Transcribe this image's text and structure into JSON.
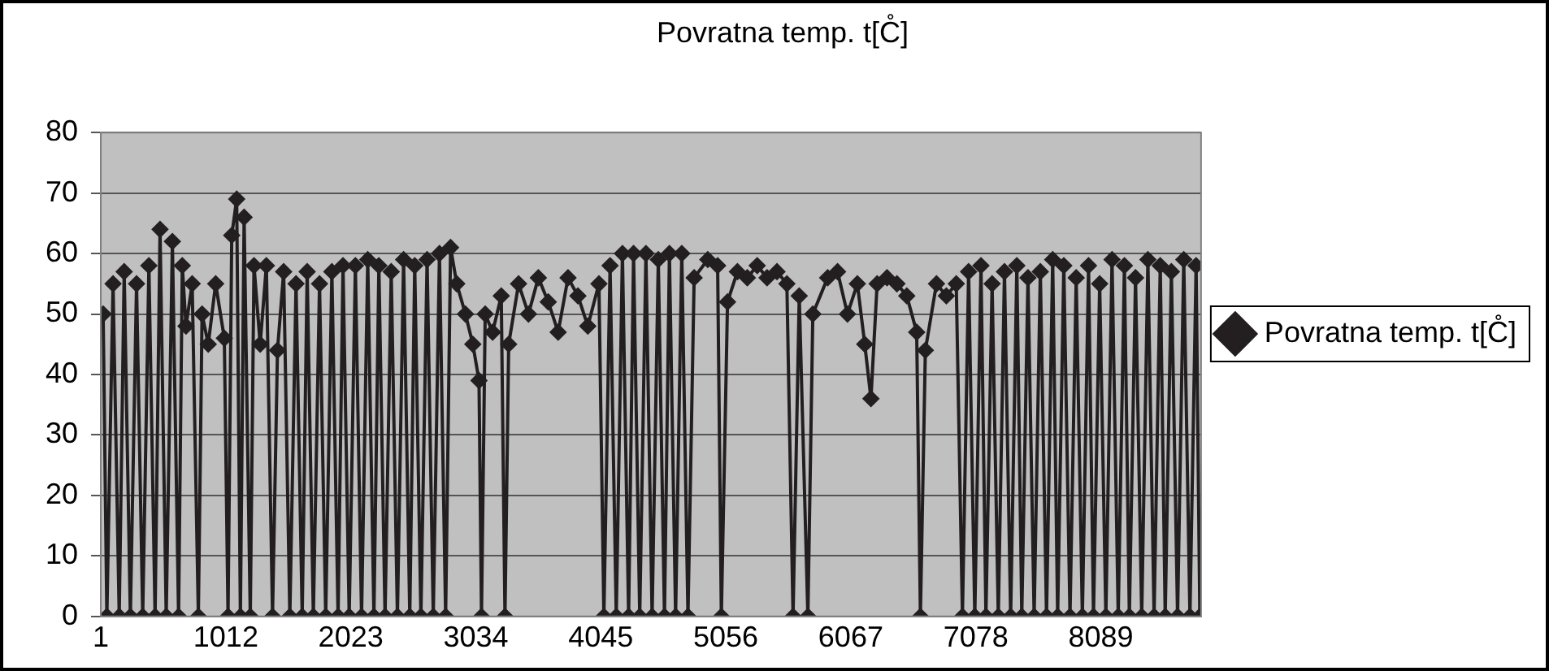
{
  "chart_data": {
    "type": "line",
    "title": "Povratna temp. t[C̊]",
    "series": [
      {
        "name": "Povratna temp. t[C̊]",
        "color": "#231f20",
        "x": [
          20,
          50,
          100,
          150,
          190,
          240,
          290,
          340,
          390,
          440,
          480,
          530,
          580,
          630,
          660,
          690,
          740,
          790,
          820,
          870,
          930,
          1000,
          1030,
          1060,
          1100,
          1130,
          1160,
          1210,
          1240,
          1290,
          1340,
          1390,
          1430,
          1480,
          1530,
          1580,
          1630,
          1670,
          1720,
          1770,
          1820,
          1870,
          1920,
          1960,
          2010,
          2060,
          2110,
          2160,
          2210,
          2250,
          2300,
          2350,
          2400,
          2450,
          2500,
          2540,
          2590,
          2640,
          2690,
          2740,
          2790,
          2830,
          2880,
          2950,
          3010,
          3060,
          3080,
          3110,
          3170,
          3240,
          3270,
          3300,
          3380,
          3460,
          3540,
          3620,
          3700,
          3780,
          3860,
          3940,
          4030,
          4070,
          4120,
          4170,
          4220,
          4270,
          4310,
          4360,
          4410,
          4460,
          4510,
          4560,
          4600,
          4650,
          4700,
          4750,
          4800,
          4910,
          4990,
          5020,
          5070,
          5150,
          5230,
          5310,
          5390,
          5470,
          5550,
          5600,
          5650,
          5720,
          5760,
          5880,
          5960,
          6040,
          6120,
          6180,
          6230,
          6280,
          6360,
          6440,
          6520,
          6600,
          6630,
          6670,
          6760,
          6840,
          6920,
          6970,
          7020,
          7070,
          7120,
          7160,
          7210,
          7260,
          7310,
          7360,
          7410,
          7450,
          7500,
          7550,
          7600,
          7650,
          7700,
          7740,
          7790,
          7840,
          7890,
          7940,
          7990,
          8030,
          8080,
          8130,
          8180,
          8230,
          8280,
          8320,
          8370,
          8420,
          8470,
          8520,
          8570,
          8610,
          8660,
          8710,
          8760,
          8810,
          8860,
          8890
        ],
        "values": [
          50,
          0,
          55,
          0,
          57,
          0,
          55,
          0,
          58,
          0,
          64,
          0,
          62,
          0,
          58,
          48,
          55,
          0,
          50,
          45,
          55,
          46,
          0,
          63,
          69,
          0,
          66,
          0,
          58,
          45,
          58,
          0,
          44,
          57,
          0,
          55,
          0,
          57,
          0,
          55,
          0,
          57,
          0,
          58,
          0,
          58,
          0,
          59,
          0,
          58,
          0,
          57,
          0,
          59,
          0,
          58,
          0,
          59,
          0,
          60,
          0,
          61,
          55,
          50,
          45,
          39,
          0,
          50,
          47,
          53,
          0,
          45,
          55,
          50,
          56,
          52,
          47,
          56,
          53,
          48,
          55,
          0,
          58,
          0,
          60,
          0,
          60,
          0,
          60,
          0,
          59,
          0,
          60,
          0,
          60,
          0,
          56,
          59,
          58,
          0,
          52,
          57,
          56,
          58,
          56,
          57,
          55,
          0,
          53,
          0,
          50,
          56,
          57,
          50,
          55,
          45,
          36,
          55,
          56,
          55,
          53,
          47,
          0,
          44,
          55,
          53,
          55,
          0,
          57,
          0,
          58,
          0,
          55,
          0,
          57,
          0,
          58,
          0,
          56,
          0,
          57,
          0,
          59,
          0,
          58,
          0,
          56,
          0,
          58,
          0,
          55,
          0,
          59,
          0,
          58,
          0,
          56,
          0,
          59,
          0,
          58,
          0,
          57,
          0,
          59,
          0,
          58,
          0
        ]
      }
    ],
    "xlim": [
      1,
      8900
    ],
    "xticks": [
      1,
      1012,
      2023,
      3034,
      4045,
      5056,
      6067,
      7078,
      8089
    ],
    "ylim": [
      0,
      80
    ],
    "yticks": [
      0,
      10,
      20,
      30,
      40,
      50,
      60,
      70,
      80
    ],
    "grid": "y",
    "legend": "right",
    "marker": "diamond",
    "line_style": "solid"
  }
}
